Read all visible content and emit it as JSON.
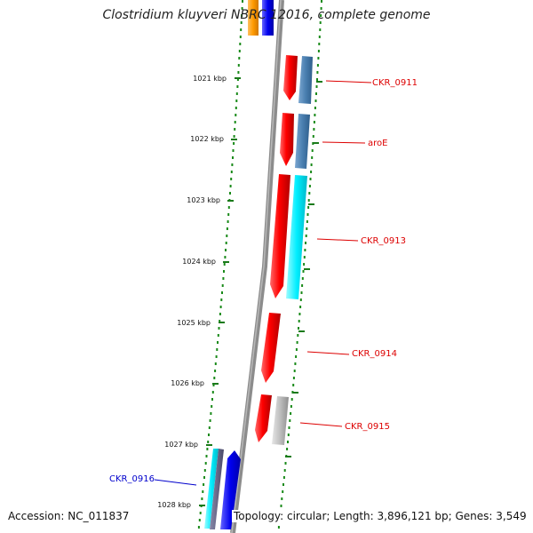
{
  "title": "Clostridium kluyveri NBRC 12016, complete genome",
  "footer": {
    "accession": "Accession: NC_011837",
    "summary": "Topology: circular; Length: 3,896,121 bp; Genes: 3,549"
  },
  "colors": {
    "backbone": "#8c8c8c",
    "dots": "#1a8a1a",
    "label_red": "#dd0000",
    "label_blue": "#0000cc"
  },
  "scale_ticks": [
    "1021 kbp",
    "1022 kbp",
    "1023 kbp",
    "1024 kbp",
    "1025 kbp",
    "1026 kbp",
    "1027 kbp",
    "1028 kbp"
  ],
  "genes": [
    {
      "name": "CKR_0911",
      "color": "red"
    },
    {
      "name": "aroE",
      "color": "red"
    },
    {
      "name": "CKR_0913",
      "color": "red"
    },
    {
      "name": "CKR_0914",
      "color": "red"
    },
    {
      "name": "CKR_0915",
      "color": "red"
    },
    {
      "name": "CKR_0916",
      "color": "blue"
    }
  ]
}
